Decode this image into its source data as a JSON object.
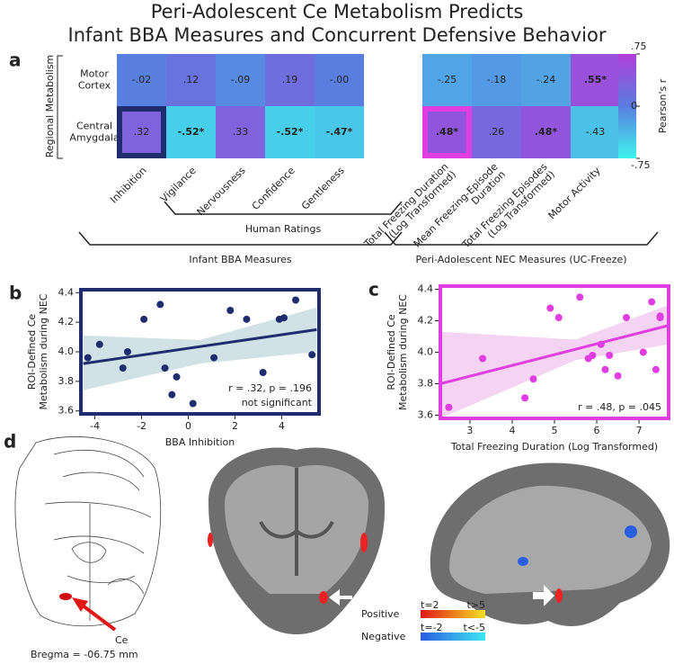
{
  "title": [
    "Peri-Adolescent Ce Metabolism Predicts",
    "Infant BBA Measures and Concurrent Defensive Behavior"
  ],
  "chart_data": [
    {
      "type": "heatmap",
      "panel": "a",
      "ylabel": "Regional Metabolism",
      "rows": [
        [
          "Motor",
          "Cortex"
        ],
        [
          "Central",
          "Amygdala"
        ]
      ],
      "columns": [
        [
          "Inhibition"
        ],
        [
          "Vigilance"
        ],
        [
          "Nervousness"
        ],
        [
          "Confidence"
        ],
        [
          "Gentleness"
        ],
        [
          "Total Freezing Duration",
          "(Log Transformed)"
        ],
        [
          "Mean Freezing-Episode",
          "Duration"
        ],
        [
          "Total Freezing Episodes",
          "(Log Transformed)"
        ],
        [
          "Motor Activity"
        ]
      ],
      "values": [
        [
          -0.02,
          0.12,
          -0.09,
          0.19,
          0,
          -0.25,
          -0.18,
          -0.24,
          0.55
        ],
        [
          0.32,
          -0.52,
          0.33,
          -0.52,
          -0.47,
          0.48,
          0.26,
          0.48,
          -0.43
        ]
      ],
      "value_labels": [
        [
          "-.02",
          ".12",
          "-.09",
          ".19",
          "-.00",
          "-.25",
          "-.18",
          "-.24",
          ".55*"
        ],
        [
          ".32",
          "-.52*",
          ".33",
          "-.52*",
          "-.47*",
          ".48*",
          ".26",
          ".48*",
          "-.43"
        ]
      ],
      "colormap": [
        "#3ff3ee",
        "#5a7de0",
        "#b03fd8"
      ],
      "zlim": [
        -0.75,
        0.75
      ],
      "zticks": [
        {
          "value": 0.75,
          "label": ".75"
        },
        0,
        {
          "value": -0.75,
          "label": "-.75"
        }
      ],
      "zlabel": "Pearson's r",
      "highlights": [
        {
          "row": 1,
          "col": 0,
          "color": "#1f2d6e"
        },
        {
          "row": 1,
          "col": 5,
          "color": "#e03ee0"
        }
      ],
      "groups": [
        {
          "label": "Human Ratings",
          "from": 1,
          "to": 4
        },
        {
          "label": "Infant BBA Measures",
          "from": 0,
          "to": 4
        },
        {
          "label": "Peri-Adolescent NEC Measures (UC-Freeze)",
          "from": 5,
          "to": 8
        }
      ]
    },
    {
      "type": "scatter",
      "panel": "b",
      "color": "#1f2d6e",
      "band_color": "#c5dbe0",
      "xlabel": "BBA Inhibition",
      "ylabel": [
        "ROI-Defined Ce",
        "Metabolism during NEC"
      ],
      "x": [
        -4.3,
        -3.8,
        -2.8,
        -2.6,
        -1.9,
        -1.2,
        -1.0,
        -0.7,
        -0.5,
        0.2,
        1.1,
        1.8,
        2.5,
        3.2,
        3.9,
        4.1,
        4.6,
        5.3
      ],
      "y": [
        3.96,
        4.05,
        3.89,
        4.0,
        4.22,
        4.32,
        3.89,
        3.71,
        3.83,
        3.65,
        3.96,
        4.28,
        4.22,
        3.86,
        4.22,
        4.23,
        4.35,
        3.98
      ],
      "fit": {
        "x": [
          -4.5,
          5.5
        ],
        "y": [
          3.92,
          4.15
        ]
      },
      "band": {
        "x": [
          -4.5,
          0.5,
          5.5
        ],
        "upper": [
          4.11,
          4.08,
          4.3
        ],
        "lower": [
          3.74,
          3.92,
          4.0
        ]
      },
      "xlim": [
        -4.6,
        5.6
      ],
      "ylim": [
        3.58,
        4.42
      ],
      "xticks": [
        -4,
        -2,
        0,
        2,
        4
      ],
      "yticks": [
        3.6,
        3.8,
        {
          "value": 4,
          "label": "4.0"
        },
        4.2,
        4.4
      ],
      "annotations": [
        "r = .32,  p = .196",
        "not significant"
      ]
    },
    {
      "type": "scatter",
      "panel": "c",
      "color": "#e03ee0",
      "band_color": "#f3c8ef",
      "xlabel": "Total Freezing Duration (Log Transformed)",
      "ylabel": [
        "ROI-Defined Ce",
        "Metabolism during NEC"
      ],
      "x": [
        2.5,
        3.3,
        4.3,
        4.5,
        4.9,
        5.1,
        5.6,
        5.8,
        5.9,
        6.1,
        6.2,
        6.3,
        6.5,
        6.7,
        7.1,
        7.3,
        7.4,
        7.5,
        7.5
      ],
      "y": [
        3.65,
        3.96,
        3.71,
        3.83,
        4.28,
        4.22,
        4.35,
        3.96,
        3.98,
        4.05,
        3.89,
        3.98,
        3.85,
        4.22,
        4.0,
        4.32,
        3.89,
        4.22,
        4.23
      ],
      "fit": {
        "x": [
          2.3,
          7.7
        ],
        "y": [
          3.8,
          4.17
        ]
      },
      "band": {
        "x": [
          2.3,
          5.5,
          7.7
        ],
        "upper": [
          4.13,
          4.08,
          4.3
        ],
        "lower": [
          3.58,
          3.95,
          4.05
        ]
      },
      "xlim": [
        2.3,
        7.7
      ],
      "ylim": [
        3.58,
        4.42
      ],
      "xticks": [
        3,
        4,
        5,
        6,
        7
      ],
      "yticks": [
        3.6,
        3.8,
        {
          "value": 4,
          "label": "4.0"
        },
        4.2,
        4.4
      ],
      "annotations": [
        "r = .48,  p = .045"
      ]
    }
  ],
  "panel_d": {
    "label": "d",
    "region": "Ce",
    "bregma": "Bregma = -06.75 mm",
    "legend": [
      {
        "name": "Positive",
        "low": "t=2",
        "high": "t>5",
        "colors": [
          "#e01818",
          "#f5e020"
        ]
      },
      {
        "name": "Negative",
        "low": "t=-2",
        "high": "t<-5",
        "colors": [
          "#2a5ee0",
          "#3fe6f2"
        ]
      }
    ]
  }
}
